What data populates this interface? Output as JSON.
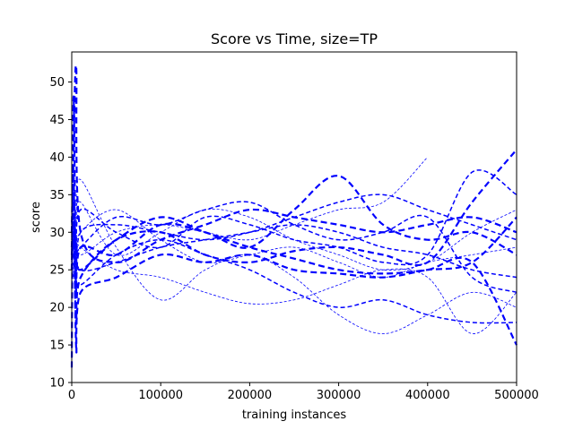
{
  "chart_data": {
    "type": "line",
    "title": "Score vs Time, size=TP",
    "xlabel": "training instances",
    "ylabel": "score",
    "xlim": [
      0,
      500000
    ],
    "ylim": [
      10,
      54
    ],
    "xticks": [
      0,
      100000,
      200000,
      300000,
      400000,
      500000
    ],
    "yticks": [
      10,
      15,
      20,
      25,
      30,
      35,
      40,
      45,
      50
    ],
    "grid": false,
    "legend": "none",
    "line_color": "#0000ff",
    "series": [
      {
        "style": "thick-dashed",
        "x": [
          0,
          2000,
          5000,
          10000,
          50000,
          100000,
          150000,
          200000,
          250000,
          300000,
          350000,
          400000,
          450000,
          500000
        ],
        "y": [
          12,
          48,
          22,
          28,
          27,
          31,
          30,
          28,
          33,
          37.5,
          31,
          29,
          30,
          27
        ]
      },
      {
        "style": "thick-dashed",
        "x": [
          0,
          2000,
          5000,
          10000,
          50000,
          100000,
          150000,
          200000,
          250000,
          300000,
          350000,
          400000,
          450000,
          500000
        ],
        "y": [
          25,
          40,
          52,
          30,
          26,
          29,
          31,
          33,
          32,
          31,
          30,
          31,
          32,
          30
        ]
      },
      {
        "style": "thick-dashed",
        "x": [
          0,
          2000,
          5000,
          10000,
          50000,
          100000,
          150000,
          200000,
          250000,
          300000,
          350000,
          400000,
          450000,
          500000
        ],
        "y": [
          30,
          38,
          14.5,
          22,
          24,
          27,
          26,
          27,
          25,
          24.5,
          24,
          25,
          26,
          15
        ]
      },
      {
        "style": "thick-dashed",
        "x": [
          0,
          2000,
          5000,
          10000,
          50000,
          100000,
          150000,
          200000,
          250000,
          300000,
          350000,
          400000,
          450000,
          500000
        ],
        "y": [
          28,
          32,
          18,
          24,
          29,
          30,
          27,
          26,
          27.5,
          28,
          27,
          26,
          34,
          41
        ]
      },
      {
        "style": "dashed",
        "x": [
          0,
          2000,
          5000,
          10000,
          50000,
          100000,
          150000,
          200000,
          250000,
          300000,
          350000,
          400000,
          450000,
          500000
        ],
        "y": [
          27,
          34,
          23,
          30,
          31,
          30,
          29,
          30,
          32,
          34,
          35,
          33,
          31,
          29
        ]
      },
      {
        "style": "dashed",
        "x": [
          0,
          2000,
          5000,
          10000,
          50000,
          100000,
          150000,
          200000,
          250000,
          300000,
          350000,
          400000,
          450000,
          500000
        ],
        "y": [
          29,
          31,
          27,
          28,
          32,
          31,
          33,
          34,
          31,
          29,
          30,
          32,
          24,
          22
        ]
      },
      {
        "style": "dashed",
        "x": [
          0,
          2000,
          5000,
          10000,
          50000,
          100000,
          150000,
          200000,
          250000,
          300000,
          350000,
          400000,
          450000,
          500000
        ],
        "y": [
          26,
          29,
          25,
          23,
          27,
          29,
          27,
          25,
          22,
          20,
          21,
          19,
          18,
          18
        ]
      },
      {
        "style": "dashed",
        "x": [
          0,
          2000,
          5000,
          10000,
          50000,
          100000,
          150000,
          200000,
          250000,
          300000,
          350000,
          400000,
          450000,
          500000
        ],
        "y": [
          31,
          36,
          29,
          25,
          26,
          28,
          29,
          30,
          31,
          30,
          28,
          27,
          25,
          24
        ]
      },
      {
        "style": "thin-dashed",
        "x": [
          0,
          2000,
          5000,
          10000,
          50000,
          100000,
          150000,
          200000,
          250000,
          300000,
          350000,
          400000,
          450000,
          500000
        ],
        "y": [
          24,
          30,
          32,
          37,
          28,
          21,
          25,
          27,
          24,
          19,
          16.5,
          19,
          22,
          20
        ]
      },
      {
        "style": "thin-dashed",
        "x": [
          0,
          2000,
          5000,
          10000,
          50000,
          100000,
          150000,
          200000,
          250000,
          300000,
          350000,
          400000,
          450000,
          500000
        ],
        "y": [
          33,
          28,
          31,
          34,
          27,
          30,
          33,
          32,
          29,
          27,
          25,
          26,
          30,
          33
        ]
      },
      {
        "style": "thin-dashed",
        "x": [
          0,
          2000,
          5000,
          10000,
          50000,
          100000,
          150000,
          200000,
          250000,
          300000,
          350000,
          400000,
          450000,
          500000
        ],
        "y": [
          22,
          26,
          29,
          28,
          25,
          24,
          22,
          20.5,
          21,
          23,
          25,
          24,
          16.5,
          22
        ]
      },
      {
        "style": "thin-dashed",
        "x": [
          0,
          2000,
          5000,
          10000,
          50000,
          100000,
          150000,
          200000,
          250000,
          300000,
          350000,
          400000
        ],
        "y": [
          35,
          32,
          30,
          27,
          30,
          31,
          30,
          29,
          31,
          33,
          34,
          40
        ]
      },
      {
        "style": "thin-dashed",
        "x": [
          0,
          2000,
          5000,
          10000,
          50000,
          100000,
          150000,
          200000,
          250000,
          300000,
          350000,
          400000,
          450000,
          500000
        ],
        "y": [
          28,
          24,
          27,
          30,
          33,
          29,
          26,
          27,
          28,
          26,
          24,
          26,
          27,
          28
        ]
      },
      {
        "style": "dashed",
        "x": [
          0,
          2000,
          5000,
          10000,
          50000,
          100000,
          150000,
          200000,
          250000,
          300000,
          350000,
          400000,
          450000,
          500000
        ],
        "y": [
          30,
          27,
          26,
          33,
          30,
          28,
          32,
          31,
          29,
          28,
          26,
          27,
          38,
          35
        ]
      },
      {
        "style": "thick-dashed",
        "x": [
          0,
          2000,
          5000,
          10000,
          50000,
          100000,
          150000,
          200000,
          250000,
          300000,
          350000,
          400000,
          450000,
          500000
        ],
        "y": [
          27,
          30,
          28,
          25,
          29,
          32,
          30,
          28,
          26.5,
          25,
          24.5,
          25,
          26,
          32
        ]
      }
    ]
  }
}
